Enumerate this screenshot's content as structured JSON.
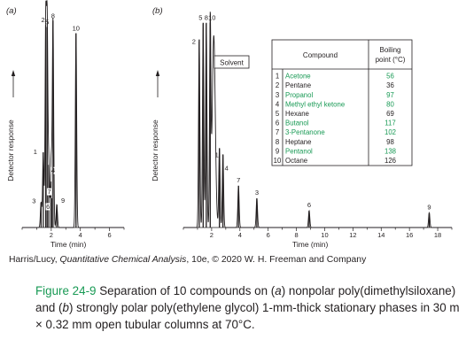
{
  "chart_data": [
    {
      "type": "line",
      "panel_label": "(a)",
      "xlabel": "Time (min)",
      "ylabel": "Detector response",
      "xlim": [
        0,
        7
      ],
      "x_ticks": [
        2,
        4,
        6
      ],
      "peaks": [
        {
          "label": "1",
          "time": 1.45,
          "height": 0.36
        },
        {
          "label": "2",
          "time": 1.62,
          "height": 0.97
        },
        {
          "label": "3",
          "time": 1.3,
          "height": 0.12
        },
        {
          "label": "4",
          "time": 1.83,
          "height": 0.3
        },
        {
          "label": "5",
          "time": 1.72,
          "height": 0.96
        },
        {
          "label": "6",
          "time": 2.02,
          "height": 0.14
        },
        {
          "label": "7",
          "time": 1.98,
          "height": 0.22
        },
        {
          "label": "8",
          "time": 2.12,
          "height": 0.99
        },
        {
          "label": "9",
          "time": 2.38,
          "height": 0.11
        },
        {
          "label": "10",
          "time": 3.7,
          "height": 0.93
        }
      ]
    },
    {
      "type": "line",
      "panel_label": "(b)",
      "xlabel": "Time (min)",
      "ylabel": "Detector response",
      "xlim": [
        0,
        19
      ],
      "x_ticks": [
        2,
        4,
        6,
        8,
        10,
        12,
        14,
        16,
        18
      ],
      "peaks": [
        {
          "label": "2",
          "time": 1.12,
          "height": 0.9
        },
        {
          "label": "5",
          "time": 1.4,
          "height": 0.98
        },
        {
          "label": "8",
          "time": 1.62,
          "height": 0.98
        },
        {
          "label": "10",
          "time": 1.9,
          "height": 0.98
        },
        {
          "label": "1",
          "time": 2.55,
          "height": 0.38
        },
        {
          "label": "4",
          "time": 2.8,
          "height": 0.35
        },
        {
          "label": "7",
          "time": 3.9,
          "height": 0.2
        },
        {
          "label": "3",
          "time": 5.2,
          "height": 0.14
        },
        {
          "label": "6",
          "time": 8.9,
          "height": 0.08
        },
        {
          "label": "9",
          "time": 17.4,
          "height": 0.07
        }
      ],
      "annotations": [
        "Solvent"
      ],
      "table": {
        "columns": [
          "Compound",
          "Boiling point (°C)"
        ],
        "rows": [
          {
            "n": "1",
            "name": "Acetone",
            "bp": "56",
            "polar": true
          },
          {
            "n": "2",
            "name": "Pentane",
            "bp": "36",
            "polar": false
          },
          {
            "n": "3",
            "name": "Propanol",
            "bp": "97",
            "polar": true
          },
          {
            "n": "4",
            "name": "Methyl ethyl ketone",
            "bp": "80",
            "polar": true
          },
          {
            "n": "5",
            "name": "Hexane",
            "bp": "69",
            "polar": false
          },
          {
            "n": "6",
            "name": "Butanol",
            "bp": "117",
            "polar": true
          },
          {
            "n": "7",
            "name": "3-Pentanone",
            "bp": "102",
            "polar": true
          },
          {
            "n": "8",
            "name": "Heptane",
            "bp": "98",
            "polar": false
          },
          {
            "n": "9",
            "name": "Pentanol",
            "bp": "138",
            "polar": true
          },
          {
            "n": "10",
            "name": "Octane",
            "bp": "126",
            "polar": false
          }
        ]
      }
    }
  ],
  "colors": {
    "polar": "#199a55",
    "text": "#231f20",
    "caption_label": "#199a55"
  },
  "credit": {
    "prefix": "Harris/Lucy, ",
    "book": "Quantitative Chemical Analysis",
    "suffix": ", 10e, © 2020 W. H. Freeman and Company"
  },
  "caption": {
    "label": "Figure 24-9",
    "t1": " Separation of 10 compounds on (",
    "a": "a",
    "t2": ") nonpolar poly(dimethylsiloxane) and (",
    "b": "b",
    "t3": ") strongly polar poly(ethylene glycol) 1-mm-thick stationary phases in 30 m × 0.32 mm open tubular columns at 70°C."
  }
}
